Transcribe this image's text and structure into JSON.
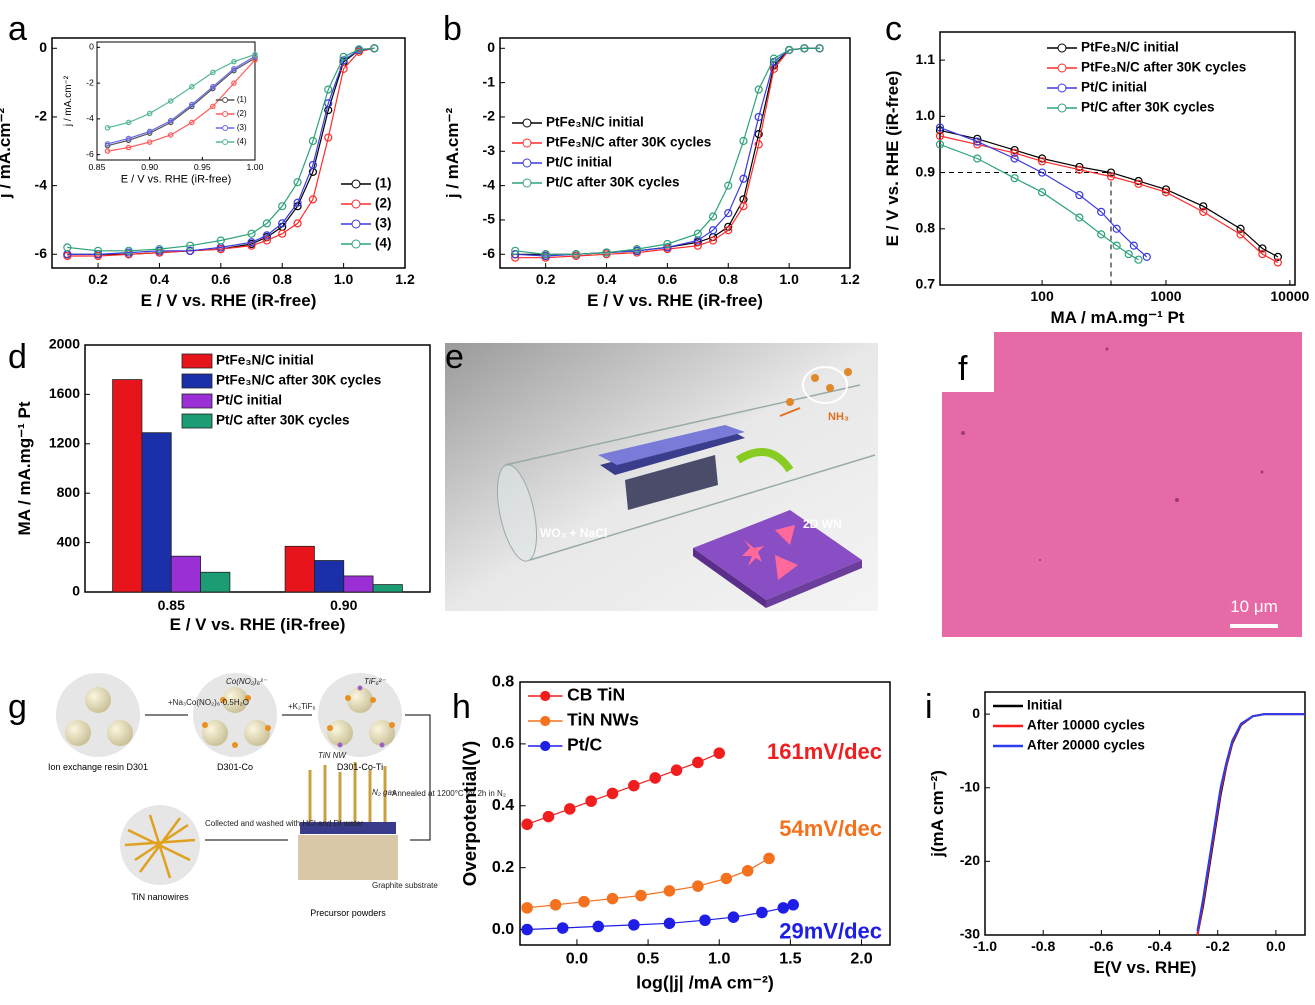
{
  "panel_letters": [
    "a",
    "b",
    "c",
    "d",
    "e",
    "f",
    "g",
    "h",
    "i"
  ],
  "chart_data": [
    {
      "type": "line",
      "legend": "lower-right",
      "markers": "hollow",
      "x_label": "E / V vs. RHE (iR-free)",
      "y_label": "j / mA.cm⁻²",
      "x": [
        0.1,
        0.2,
        0.3,
        0.4,
        0.5,
        0.6,
        0.7,
        0.75,
        0.8,
        0.85,
        0.9,
        0.95,
        1.0,
        1.05,
        1.1
      ],
      "xlim": [
        0.05,
        1.2
      ],
      "xticks": [
        0.2,
        0.4,
        0.6,
        0.8,
        {
          "value": 1,
          "label": "1.0"
        },
        1.2
      ],
      "ylim": [
        -6.4,
        0.3
      ],
      "yticks": [
        0,
        -2,
        -4,
        -6
      ],
      "series": [
        {
          "name": "(1)",
          "color": "#000000",
          "values": [
            -6.0,
            -6.0,
            -6.0,
            -5.95,
            -5.9,
            -5.85,
            -5.7,
            -5.5,
            -5.2,
            -4.6,
            -3.6,
            -1.8,
            -0.4,
            -0.05,
            0
          ]
        },
        {
          "name": "(2)",
          "color": "#ff2a2a",
          "values": [
            -6.05,
            -6.05,
            -6.0,
            -5.95,
            -5.9,
            -5.85,
            -5.75,
            -5.6,
            -5.4,
            -5.1,
            -4.4,
            -2.6,
            -0.6,
            -0.1,
            0
          ]
        },
        {
          "name": "(3)",
          "color": "#3a3ae0",
          "values": [
            -6.0,
            -6.0,
            -5.95,
            -5.9,
            -5.9,
            -5.8,
            -5.65,
            -5.45,
            -5.1,
            -4.5,
            -3.4,
            -1.6,
            -0.35,
            -0.05,
            0
          ]
        },
        {
          "name": "(4)",
          "color": "#2fa37a",
          "values": [
            -5.8,
            -5.9,
            -5.9,
            -5.85,
            -5.75,
            -5.6,
            -5.4,
            -5.1,
            -4.6,
            -3.9,
            -2.7,
            -1.2,
            -0.25,
            -0.03,
            0
          ]
        }
      ]
    },
    {
      "type": "line",
      "legend": "lower-right",
      "markers": "hollow",
      "x_label": "E / V vs. RHE (iR-free)",
      "y_label": "j / mA.cm⁻²",
      "x": [
        0.86,
        0.88,
        0.9,
        0.92,
        0.94,
        0.96,
        0.98,
        1.0
      ],
      "xlim": [
        0.85,
        1.0
      ],
      "xticks": [
        0.85,
        {
          "value": 0.9,
          "label": "0.90"
        },
        0.95,
        {
          "value": 1,
          "label": "1.00"
        }
      ],
      "ylim": [
        -6.3,
        0.3
      ],
      "yticks": [
        0,
        -2,
        -4,
        -6
      ],
      "series": [
        {
          "name": "(1)",
          "color": "#555555",
          "values": [
            -5.5,
            -5.2,
            -4.8,
            -4.2,
            -3.3,
            -2.3,
            -1.3,
            -0.6
          ]
        },
        {
          "name": "(2)",
          "color": "#ff5a5a",
          "values": [
            -5.8,
            -5.6,
            -5.3,
            -4.9,
            -4.2,
            -3.3,
            -2.0,
            -0.7
          ]
        },
        {
          "name": "(3)",
          "color": "#6a6ae8",
          "values": [
            -5.4,
            -5.1,
            -4.7,
            -4.1,
            -3.2,
            -2.2,
            -1.2,
            -0.5
          ]
        },
        {
          "name": "(4)",
          "color": "#55b892",
          "values": [
            -4.5,
            -4.2,
            -3.7,
            -3.0,
            -2.2,
            -1.4,
            -0.8,
            -0.4
          ]
        }
      ]
    },
    {
      "type": "line",
      "legend": "center-left",
      "markers": "hollow",
      "x_label": "E / V vs. RHE (iR-free)",
      "y_label": "j / mA.cm⁻²",
      "x": [
        0.1,
        0.2,
        0.3,
        0.4,
        0.5,
        0.6,
        0.7,
        0.75,
        0.8,
        0.85,
        0.9,
        0.95,
        1.0,
        1.05,
        1.1
      ],
      "xlim": [
        0.05,
        1.2
      ],
      "xticks": [
        0.2,
        0.4,
        0.6,
        0.8,
        {
          "value": 1,
          "label": "1.0"
        },
        1.2
      ],
      "ylim": [
        -6.4,
        0.3
      ],
      "yticks": [
        0,
        -1,
        -2,
        -3,
        -4,
        -5,
        -6
      ],
      "series": [
        {
          "name": "PtFe₃N/C initial",
          "color": "#000000",
          "values": [
            -6.0,
            -6.0,
            -6.0,
            -5.95,
            -5.9,
            -5.8,
            -5.65,
            -5.5,
            -5.2,
            -4.4,
            -2.5,
            -0.5,
            -0.05,
            0,
            0
          ]
        },
        {
          "name": "PtFe₃N/C after 30K cycles",
          "color": "#ff2a2a",
          "values": [
            -6.1,
            -6.1,
            -6.05,
            -6.0,
            -5.95,
            -5.85,
            -5.75,
            -5.6,
            -5.3,
            -4.6,
            -2.8,
            -0.6,
            -0.05,
            0,
            0
          ]
        },
        {
          "name": "Pt/C initial",
          "color": "#3a3ae0",
          "values": [
            -6.0,
            -6.05,
            -6.0,
            -5.95,
            -5.9,
            -5.8,
            -5.6,
            -5.3,
            -4.8,
            -3.8,
            -2.0,
            -0.4,
            -0.05,
            0,
            0
          ]
        },
        {
          "name": "Pt/C after 30K cycles",
          "color": "#2fa37a",
          "values": [
            -5.9,
            -6.0,
            -6.0,
            -5.95,
            -5.85,
            -5.7,
            -5.4,
            -4.9,
            -4.0,
            -2.7,
            -1.2,
            -0.3,
            -0.05,
            0,
            0
          ]
        }
      ]
    },
    {
      "type": "line",
      "legend": "upper-right",
      "markers": "hollow",
      "xscale": "log",
      "x_label": "MA / mA.mg⁻¹ Pt",
      "y_label": "E / V vs. RHE (iR-free)",
      "xlim": [
        15,
        11000
      ],
      "xticks": [
        100,
        1000,
        10000
      ],
      "ylim": [
        0.7,
        1.15
      ],
      "yticks": [
        0.7,
        0.8,
        0.9,
        {
          "value": 1,
          "label": "1.0"
        },
        1.1
      ],
      "ref_x": 360,
      "ref_y": 0.9,
      "series": [
        {
          "name": "PtFe₃N/C initial",
          "color": "#000000",
          "x": [
            15,
            30,
            60,
            100,
            200,
            360,
            600,
            1000,
            2000,
            4000,
            6000,
            8000
          ],
          "values": [
            0.975,
            0.96,
            0.94,
            0.925,
            0.91,
            0.9,
            0.885,
            0.87,
            0.84,
            0.8,
            0.765,
            0.75
          ]
        },
        {
          "name": "PtFe₃N/C after 30K cycles",
          "color": "#ff2a2a",
          "x": [
            15,
            30,
            60,
            100,
            200,
            360,
            600,
            1000,
            2000,
            4000,
            6000,
            8000
          ],
          "values": [
            0.965,
            0.95,
            0.935,
            0.92,
            0.905,
            0.893,
            0.88,
            0.865,
            0.83,
            0.79,
            0.755,
            0.74
          ]
        },
        {
          "name": "Pt/C initial",
          "color": "#3a3ae0",
          "x": [
            15,
            30,
            60,
            100,
            200,
            300,
            400,
            550,
            700
          ],
          "values": [
            0.98,
            0.955,
            0.925,
            0.9,
            0.86,
            0.83,
            0.8,
            0.77,
            0.75
          ]
        },
        {
          "name": "Pt/C after 30K cycles",
          "color": "#2fa37a",
          "x": [
            15,
            30,
            60,
            100,
            200,
            300,
            400,
            500,
            600
          ],
          "values": [
            0.95,
            0.925,
            0.89,
            0.865,
            0.82,
            0.79,
            0.77,
            0.755,
            0.745
          ]
        }
      ]
    },
    {
      "type": "bar",
      "legend": "upper-right",
      "x_label": "E / V vs. RHE (iR-free)",
      "y_label": "MA / mA.mg⁻¹ Pt",
      "categories": [
        "0.85",
        "0.90"
      ],
      "ylim": [
        0,
        2000
      ],
      "yticks": [
        0,
        400,
        800,
        1200,
        1600,
        2000
      ],
      "series": [
        {
          "name": "PtFe₃N/C initial",
          "color": "#e8141c",
          "values": [
            1720,
            370
          ]
        },
        {
          "name": "PtFe₃N/C after 30K cycles",
          "color": "#1a2fa8",
          "values": [
            1290,
            255
          ]
        },
        {
          "name": "Pt/C initial",
          "color": "#9b2fd6",
          "values": [
            290,
            130
          ]
        },
        {
          "name": "Pt/C after 30K cycles",
          "color": "#1c9c74",
          "values": [
            160,
            60
          ]
        }
      ]
    },
    {
      "type": "line",
      "legend": "upper-left",
      "markers": "filled",
      "x_label": "log(|j| /mA cm⁻²)",
      "y_label": "Overpotential(V)",
      "xlim": [
        -0.4,
        2.2
      ],
      "xticks": [
        {
          "value": 0,
          "label": "0.0"
        },
        0.5,
        {
          "value": 1,
          "label": "1.0"
        },
        1.5,
        {
          "value": 2,
          "label": "2.0"
        }
      ],
      "ylim": [
        -0.05,
        0.8
      ],
      "yticks": [
        {
          "value": 0,
          "label": "0.0"
        },
        0.2,
        0.4,
        0.6,
        0.8
      ],
      "annotations": [
        "161mV/dec",
        "54mV/dec",
        "29mV/dec"
      ],
      "series": [
        {
          "name": "CB TiN",
          "color": "#f01e1e",
          "x": [
            -0.35,
            -0.2,
            -0.05,
            0.1,
            0.25,
            0.4,
            0.55,
            0.7,
            0.85,
            1.0
          ],
          "values": [
            0.34,
            0.365,
            0.39,
            0.415,
            0.44,
            0.465,
            0.49,
            0.515,
            0.54,
            0.57
          ]
        },
        {
          "name": "TiN NWs",
          "color": "#f4711e",
          "x": [
            -0.35,
            -0.15,
            0.05,
            0.25,
            0.45,
            0.65,
            0.85,
            1.05,
            1.2,
            1.35
          ],
          "values": [
            0.07,
            0.08,
            0.09,
            0.1,
            0.11,
            0.125,
            0.14,
            0.165,
            0.19,
            0.23
          ]
        },
        {
          "name": "Pt/C",
          "color": "#1e1ee6",
          "x": [
            -0.35,
            -0.1,
            0.15,
            0.4,
            0.65,
            0.9,
            1.1,
            1.3,
            1.45,
            1.52
          ],
          "values": [
            0,
            0.005,
            0.01,
            0.015,
            0.02,
            0.03,
            0.04,
            0.055,
            0.07,
            0.08
          ]
        }
      ]
    },
    {
      "type": "line",
      "legend": "upper-left",
      "markers": "none",
      "x_label": "E(V vs. RHE)",
      "y_label": "j(mA cm⁻²)",
      "x": [
        -0.27,
        -0.25,
        -0.23,
        -0.21,
        -0.19,
        -0.17,
        -0.15,
        -0.12,
        -0.08,
        -0.04,
        0,
        0.05,
        0.1
      ],
      "xlim": [
        -1.0,
        0.1
      ],
      "xticks": [
        {
          "value": -1,
          "label": "-1.0"
        },
        -0.8,
        -0.6,
        -0.4,
        -0.2,
        {
          "value": 0,
          "label": "0.0"
        }
      ],
      "ylim": [
        -30,
        3
      ],
      "yticks": [
        -30,
        -20,
        -10,
        0
      ],
      "series": [
        {
          "name": "Initial",
          "color": "#000000",
          "values": [
            -30,
            -26,
            -21,
            -16,
            -11,
            -7,
            -4,
            -1.5,
            -0.3,
            0,
            0,
            0,
            0
          ]
        },
        {
          "name": "After 10000 cycles",
          "color": "#ff1a1a",
          "values": [
            -30,
            -25.5,
            -20.5,
            -15.5,
            -10.5,
            -6.8,
            -3.8,
            -1.4,
            -0.3,
            0,
            0,
            0,
            0
          ]
        },
        {
          "name": "After 20000 cycles",
          "color": "#2a3cf0",
          "values": [
            -29.5,
            -25,
            -20,
            -15,
            -10,
            -6.5,
            -3.6,
            -1.3,
            -0.3,
            0,
            0,
            0,
            0
          ]
        }
      ]
    }
  ],
  "panel_e": {
    "labels": [
      "WO₃ + NaCl",
      "NH₃",
      "2D WN"
    ]
  },
  "panel_f": {
    "scale_bar": "10 μm"
  },
  "panel_g": {
    "labels": [
      "Ion exchange resin D301",
      "+Na₃Co(NO₂)₆·0.5H₂O",
      "D301-Co",
      "+K₂TiF₆",
      "D301-Co-Ti",
      "Annealed at 1200°C for 2h in N₂",
      "TiN NW",
      "N₂ gas",
      "Graphite substrate",
      "Precursor powders",
      "Collected and washed with HCl and DI water",
      "TiN nanowires",
      "Co(NO₂)₆³⁻",
      "TiF₆²⁻"
    ]
  }
}
